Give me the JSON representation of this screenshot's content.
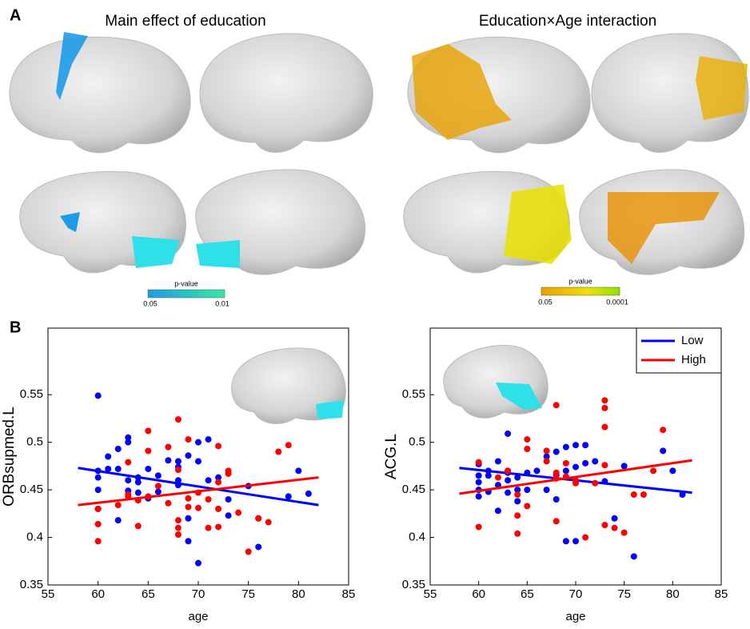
{
  "panel_a": {
    "label": "A",
    "titles": [
      "Main effect of education",
      "Education×Age interaction"
    ],
    "colorbars": [
      {
        "title": "p-value",
        "min_label": "0.05",
        "max_label": "0.01"
      },
      {
        "title": "p-value",
        "min_label": "0.05",
        "max_label": "0.0001"
      }
    ]
  },
  "panel_b": {
    "label": "B"
  },
  "chart_data": [
    {
      "type": "scatter",
      "xlabel": "age",
      "ylabel": "ORBsupmed.L",
      "xlim": [
        55,
        85
      ],
      "ylim": [
        0.35,
        0.62
      ],
      "xticks": [
        55,
        60,
        65,
        70,
        75,
        80,
        85
      ],
      "yticks": [
        0.35,
        0.4,
        0.45,
        0.5,
        0.55
      ],
      "series": [
        {
          "color": "#0000ff",
          "x": [
            60,
            60,
            60,
            60,
            60,
            61,
            61,
            62,
            62,
            62,
            63,
            63,
            63,
            63,
            64,
            64,
            64,
            65,
            65,
            66,
            66,
            67,
            68,
            68,
            68,
            68,
            69,
            69,
            69,
            70,
            70,
            70,
            71,
            71,
            72,
            73,
            73,
            75,
            76,
            76,
            80,
            81,
            79
          ],
          "values": [
            0.549,
            0.47,
            0.463,
            0.45,
            0.43,
            0.485,
            0.472,
            0.493,
            0.418,
            0.472,
            0.505,
            0.5,
            0.46,
            0.449,
            0.463,
            0.458,
            0.447,
            0.472,
            0.441,
            0.465,
            0.448,
            0.481,
            0.48,
            0.474,
            0.46,
            0.455,
            0.42,
            0.396,
            0.486,
            0.5,
            0.48,
            0.373,
            0.503,
            0.46,
            0.463,
            0.44,
            0.423,
            0.454,
            0.42,
            0.39,
            0.47,
            0.446,
            0.443
          ],
          "fit": {
            "x": [
              58,
              82
            ],
            "y": [
              0.473,
              0.434
            ]
          }
        },
        {
          "color": "#ff0000",
          "x": [
            60,
            60,
            60,
            62,
            63,
            63,
            63,
            64,
            64,
            65,
            65,
            65,
            66,
            67,
            67,
            68,
            68,
            68,
            68,
            68,
            69,
            69,
            69,
            70,
            70,
            71,
            71,
            72,
            72,
            72,
            72,
            73,
            73,
            74,
            75,
            76,
            77,
            78,
            79
          ],
          "values": [
            0.43,
            0.414,
            0.396,
            0.434,
            0.479,
            0.443,
            0.445,
            0.439,
            0.412,
            0.512,
            0.491,
            0.443,
            0.454,
            0.495,
            0.436,
            0.524,
            0.471,
            0.418,
            0.41,
            0.403,
            0.503,
            0.432,
            0.441,
            0.447,
            0.431,
            0.41,
            0.44,
            0.458,
            0.496,
            0.43,
            0.411,
            0.47,
            0.467,
            0.426,
            0.385,
            0.42,
            0.416,
            0.49,
            0.497
          ],
          "fit": {
            "x": [
              58,
              82
            ],
            "y": [
              0.434,
              0.463
            ]
          }
        }
      ]
    },
    {
      "type": "scatter",
      "xlabel": "age",
      "ylabel": "ACG.L",
      "xlim": [
        55,
        85
      ],
      "ylim": [
        0.35,
        0.62
      ],
      "xticks": [
        55,
        60,
        65,
        70,
        75,
        80,
        85
      ],
      "yticks": [
        0.35,
        0.4,
        0.45,
        0.5,
        0.55
      ],
      "legend": "upper right",
      "series": [
        {
          "name": "Low",
          "color": "#0000ff",
          "x": [
            60,
            60,
            60,
            60,
            60,
            61,
            61,
            61,
            62,
            62,
            62,
            63,
            63,
            63,
            63,
            64,
            64,
            64,
            65,
            65,
            66,
            67,
            67,
            68,
            68,
            68,
            69,
            69,
            69,
            70,
            70,
            70,
            71,
            71,
            72,
            73,
            74,
            75,
            76,
            79,
            80,
            81
          ],
          "values": [
            0.477,
            0.465,
            0.458,
            0.45,
            0.443,
            0.47,
            0.465,
            0.448,
            0.48,
            0.455,
            0.428,
            0.509,
            0.468,
            0.46,
            0.447,
            0.463,
            0.45,
            0.438,
            0.468,
            0.45,
            0.47,
            0.45,
            0.485,
            0.49,
            0.466,
            0.44,
            0.495,
            0.47,
            0.396,
            0.497,
            0.474,
            0.396,
            0.497,
            0.478,
            0.48,
            0.459,
            0.42,
            0.475,
            0.38,
            0.491,
            0.47,
            0.445
          ],
          "fit": {
            "x": [
              58,
              82
            ],
            "y": [
              0.473,
              0.447
            ]
          }
        },
        {
          "name": "High",
          "color": "#ff0000",
          "x": [
            60,
            60,
            62,
            63,
            63,
            64,
            64,
            64,
            65,
            65,
            65,
            67,
            67,
            68,
            68,
            68,
            68,
            69,
            69,
            70,
            70,
            71,
            72,
            73,
            73,
            73,
            73,
            73,
            74,
            75,
            76,
            77,
            78,
            79
          ],
          "values": [
            0.479,
            0.411,
            0.463,
            0.47,
            0.47,
            0.445,
            0.423,
            0.404,
            0.503,
            0.493,
            0.433,
            0.491,
            0.48,
            0.539,
            0.468,
            0.462,
            0.417,
            0.478,
            0.464,
            0.457,
            0.46,
            0.4,
            0.457,
            0.544,
            0.536,
            0.516,
            0.476,
            0.413,
            0.41,
            0.405,
            0.445,
            0.445,
            0.47,
            0.513
          ],
          "fit": {
            "x": [
              58,
              82
            ],
            "y": [
              0.446,
              0.481
            ]
          }
        }
      ]
    }
  ]
}
